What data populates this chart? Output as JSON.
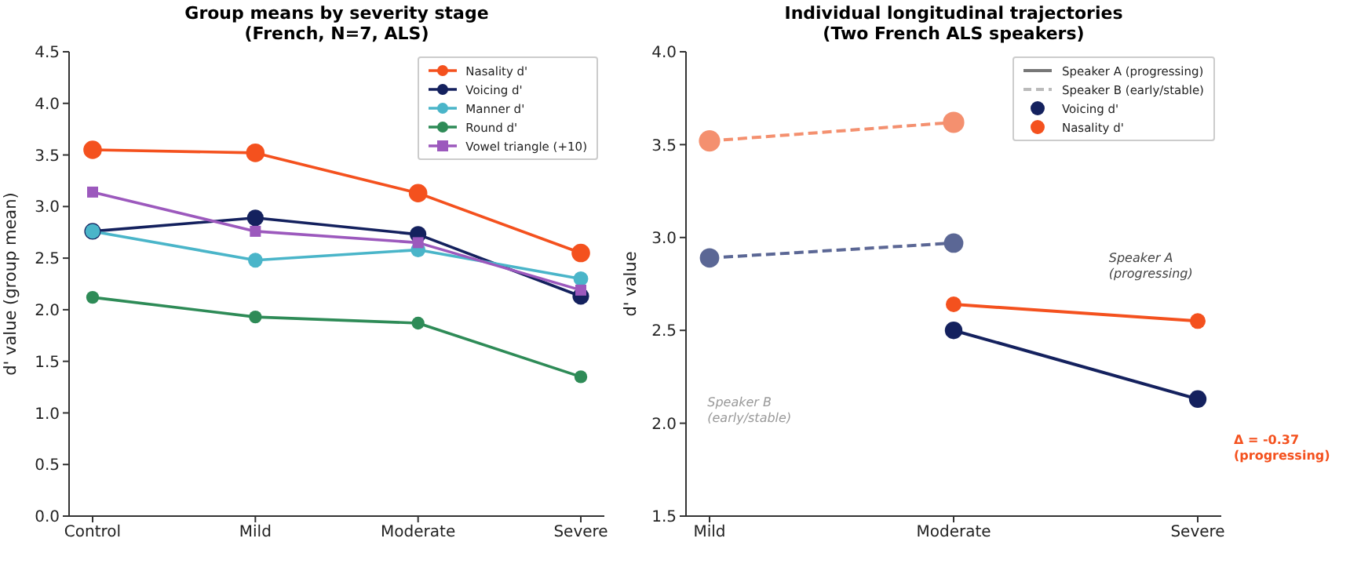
{
  "chart_data": [
    {
      "type": "line",
      "title": "Group means by severity stage\n(French, N=7, ALS)",
      "ylabel": "d' value (group mean)",
      "categories": [
        "Control",
        "Mild",
        "Moderate",
        "Severe"
      ],
      "ylim": [
        0,
        4.5
      ],
      "yticks": [
        {
          "value": 0,
          "label": "0.0"
        },
        0.5,
        {
          "value": 1,
          "label": "1.0"
        },
        1.5,
        {
          "value": 2,
          "label": "2.0"
        },
        2.5,
        {
          "value": 3,
          "label": "3.0"
        },
        3.5,
        {
          "value": 4,
          "label": "4.0"
        },
        4.5
      ],
      "legend": "top right",
      "marker": "circle",
      "line_style": "solid",
      "series": [
        {
          "name": "Nasality d'",
          "color": "#f4511e",
          "values": [
            3.55,
            3.52,
            3.13,
            2.55
          ]
        },
        {
          "name": "Voicing d'",
          "color": "#14215e",
          "values": [
            2.76,
            2.89,
            2.73,
            2.13
          ]
        },
        {
          "name": "Manner d'",
          "color": "#4ab5c9",
          "values": [
            2.76,
            2.48,
            2.58,
            2.3
          ]
        },
        {
          "name": "Round d'",
          "color": "#2e8b57",
          "values": [
            2.12,
            1.93,
            1.87,
            1.35
          ]
        },
        {
          "name": "Vowel triangle (+10)",
          "color": "#9c59bd",
          "marker": "square",
          "values": [
            3.14,
            2.76,
            2.65,
            2.19
          ]
        }
      ]
    },
    {
      "type": "line",
      "title": "Individual longitudinal trajectories\n(Two French ALS speakers)",
      "ylabel": "d' value",
      "categories": [
        "Mild",
        "Moderate",
        "Severe"
      ],
      "ylim": [
        1.5,
        4
      ],
      "yticks": [
        1.5,
        {
          "value": 2,
          "label": "2.0"
        },
        2.5,
        {
          "value": 3,
          "label": "3.0"
        },
        3.5,
        {
          "value": 4,
          "label": "4.0"
        }
      ],
      "legend": "top right",
      "marker": "circle",
      "annotations": [
        "Speaker A (progressing)",
        "Speaker B (early/stable)",
        "Speaker A\n(progressing)",
        "Speaker B\n(early/stable)",
        "Δ = -0.37\n(progressing)"
      ],
      "series": [
        {
          "color": "#f4906f",
          "line_style": "dashed",
          "values": [
            3.52,
            3.62,
            null
          ]
        },
        {
          "color": "#5b6795",
          "line_style": "dashed",
          "values": [
            2.89,
            2.97,
            null
          ]
        },
        {
          "name": "Voicing d'",
          "color": "#14215e",
          "line_style": "solid",
          "values": [
            null,
            2.5,
            2.13
          ]
        },
        {
          "name": "Nasality d'",
          "color": "#f4511e",
          "line_style": "solid",
          "values": [
            null,
            2.64,
            2.55
          ]
        }
      ]
    }
  ]
}
